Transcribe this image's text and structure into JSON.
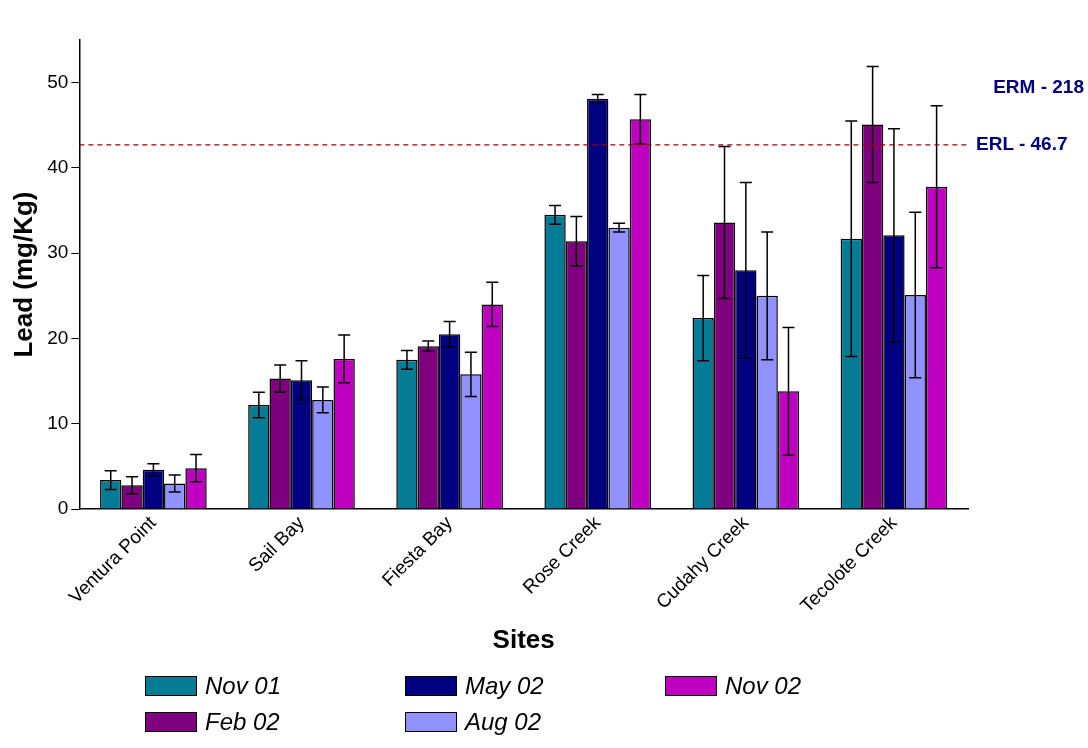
{
  "chart_data": {
    "type": "bar",
    "xlabel": "Sites",
    "ylabel": "Lead (mg/Kg)",
    "categories": [
      "Ventura Point",
      "Sail Bay",
      "Fiesta Bay",
      "Rose Creek",
      "Cudahy Creek",
      "Tecolote Creek"
    ],
    "series": [
      {
        "name": "Nov 01",
        "color": "#067b95",
        "values": [
          3.4,
          12.2,
          17.5,
          34.5,
          22.4,
          31.7
        ],
        "errors": [
          1.1,
          1.5,
          1.1,
          1.1,
          5.0,
          13.8
        ]
      },
      {
        "name": "Feb 02",
        "color": "#7f007f",
        "values": [
          2.8,
          15.3,
          19.1,
          31.4,
          33.6,
          45.1
        ],
        "errors": [
          1.0,
          1.6,
          0.6,
          2.9,
          8.9,
          6.8
        ]
      },
      {
        "name": "May 02",
        "color": "#000080",
        "values": [
          4.6,
          15.1,
          20.5,
          48.1,
          28.0,
          32.1
        ],
        "errors": [
          0.7,
          2.3,
          1.5,
          0.5,
          10.3,
          12.5
        ]
      },
      {
        "name": "Aug 02",
        "color": "#9191ff",
        "values": [
          3.0,
          12.8,
          15.8,
          33.0,
          25.0,
          25.1
        ],
        "errors": [
          1.0,
          1.5,
          2.6,
          0.5,
          7.5,
          9.7
        ]
      },
      {
        "name": "Nov 02",
        "color": "#c000c0",
        "values": [
          4.8,
          17.6,
          24.0,
          45.7,
          13.8,
          37.8
        ],
        "errors": [
          1.6,
          2.8,
          2.6,
          2.9,
          7.5,
          9.5
        ]
      }
    ],
    "ylim": [
      0,
      55
    ],
    "yticks": [
      0,
      10,
      20,
      30,
      40,
      50
    ],
    "grid": false,
    "legend": "bottom",
    "ref_lines": [
      {
        "axis": "y",
        "value": 42.7,
        "label": "ERL - 46.7",
        "color": "#a00000",
        "line_style": "dashed"
      }
    ],
    "annotations": [
      "ERM - 218"
    ]
  }
}
